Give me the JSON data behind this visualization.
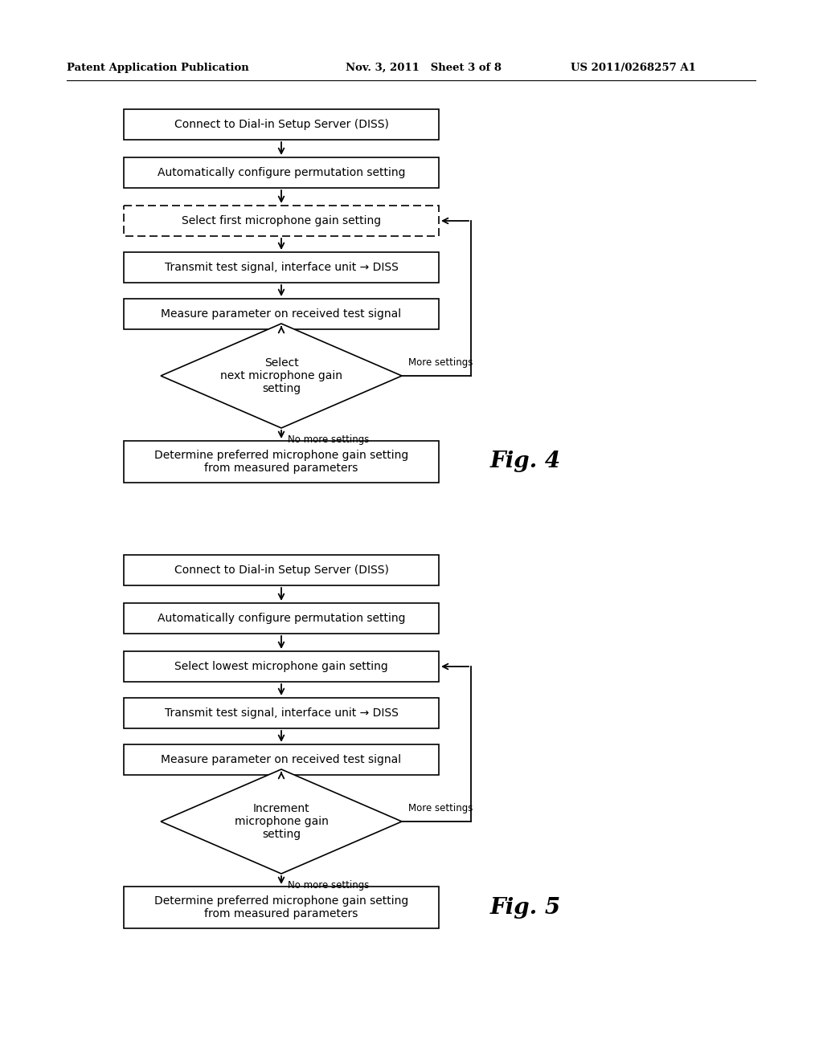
{
  "header_left": "Patent Application Publication",
  "header_mid": "Nov. 3, 2011   Sheet 3 of 8",
  "header_right": "US 2011/0268257 A1",
  "fig4_label": "Fig. 4",
  "fig5_label": "Fig. 5",
  "fig4_boxes": [
    "Connect to Dial-in Setup Server (DISS)",
    "Automatically configure permutation setting",
    "Select first microphone gain setting",
    "Transmit test signal, interface unit → DISS",
    "Measure parameter on received test signal",
    "Determine preferred microphone gain setting\nfrom measured parameters"
  ],
  "fig4_diamond": "Select\nnext microphone gain\nsetting",
  "fig4_more_settings": "More settings",
  "fig4_no_more_settings": "No more settings",
  "fig5_boxes": [
    "Connect to Dial-in Setup Server (DISS)",
    "Automatically configure permutation setting",
    "Select lowest microphone gain setting",
    "Transmit test signal, interface unit → DISS",
    "Measure parameter on received test signal",
    "Determine preferred microphone gain setting\nfrom measured parameters"
  ],
  "fig5_diamond": "Increment\nmicrophone gain\nsetting",
  "fig5_more_settings": "More settings",
  "fig5_no_more_settings": "No more settings",
  "bg_color": "#ffffff",
  "box_color": "#ffffff",
  "border_color": "#000000",
  "text_color": "#000000",
  "arrow_color": "#000000"
}
